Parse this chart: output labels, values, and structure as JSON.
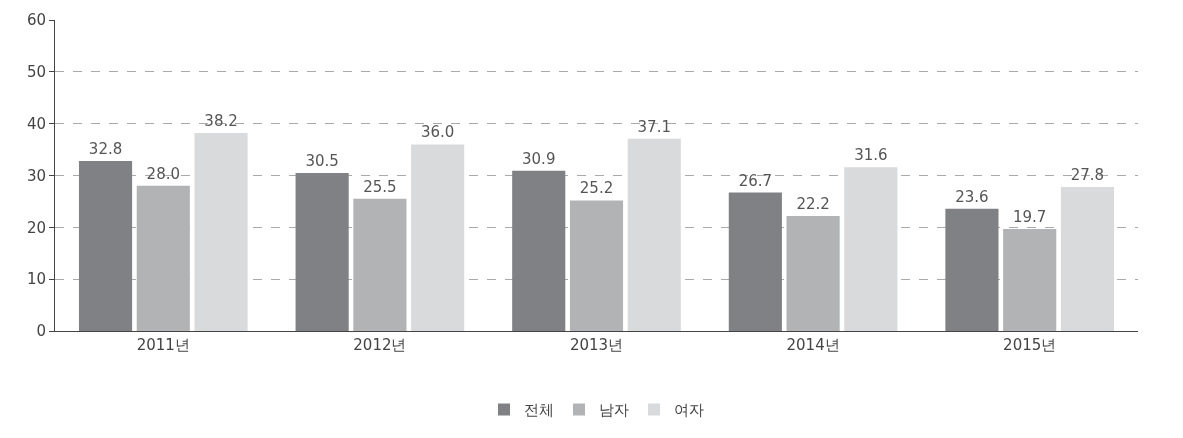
{
  "chart_data": {
    "type": "bar",
    "categories": [
      "2011년",
      "2012년",
      "2013년",
      "2014년",
      "2015년"
    ],
    "series": [
      {
        "name": "전체",
        "color": "#808184",
        "values": [
          32.8,
          30.5,
          30.9,
          26.7,
          23.6
        ],
        "value_labels": [
          "32.8",
          "30.5",
          "30.9",
          "26.7",
          "23.6"
        ]
      },
      {
        "name": "남자",
        "color": "#b2b3b5",
        "values": [
          28.0,
          25.5,
          25.2,
          22.2,
          19.7
        ],
        "value_labels": [
          "28.0",
          "25.5",
          "25.2",
          "22.2",
          "19.7"
        ]
      },
      {
        "name": "여자",
        "color": "#d9dadb",
        "values": [
          38.2,
          36.0,
          37.1,
          31.6,
          27.8
        ],
        "value_labels": [
          "38.2",
          "36.0",
          "37.1",
          "31.6",
          "27.8"
        ]
      }
    ],
    "ylim": [
      0,
      60
    ],
    "yticks": [
      0,
      10,
      20,
      30,
      40,
      50,
      60
    ],
    "grid": "y",
    "legend": "bottom"
  }
}
